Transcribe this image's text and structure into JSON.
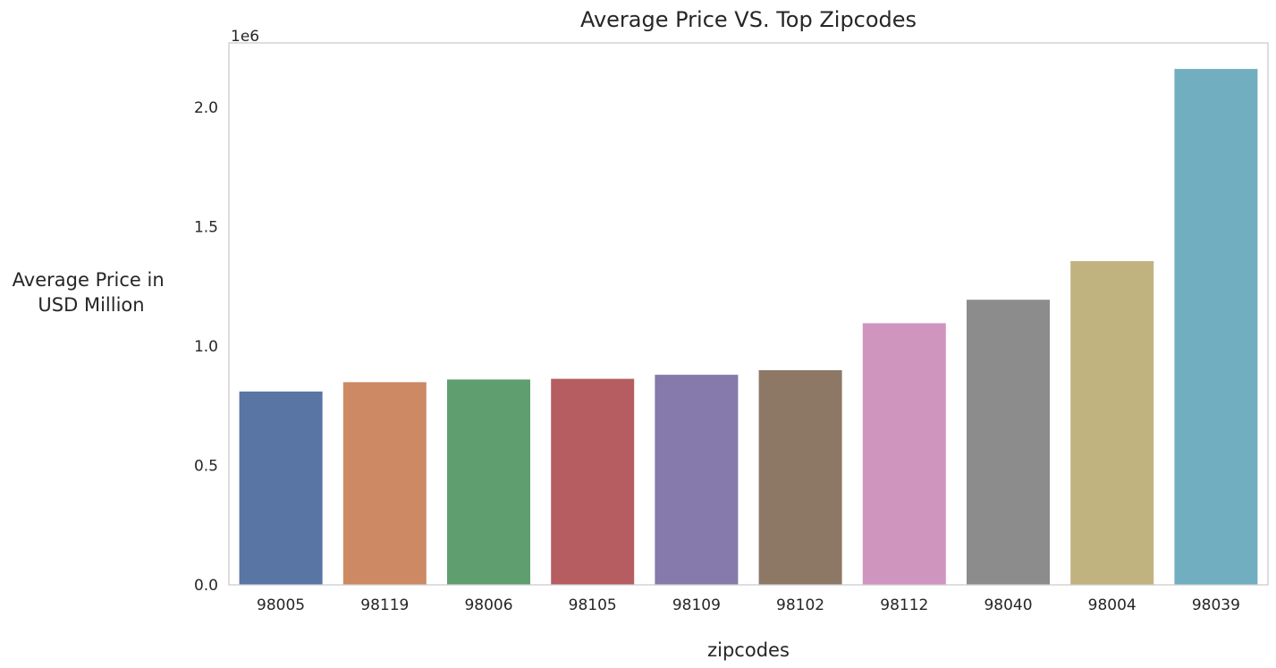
{
  "chart_data": {
    "type": "bar",
    "title": "Average Price VS. Top Zipcodes",
    "xlabel": "zipcodes",
    "ylabel_lines": [
      "Average Price in",
      "USD Million"
    ],
    "offset_label": "1e6",
    "categories": [
      "98005",
      "98119",
      "98006",
      "98105",
      "98109",
      "98102",
      "98112",
      "98040",
      "98004",
      "98039"
    ],
    "values": [
      810000,
      849000,
      860000,
      863000,
      880000,
      899000,
      1096000,
      1194000,
      1356000,
      2161000
    ],
    "colors": [
      "#5875a4",
      "#cc8963",
      "#5f9e6e",
      "#b55d60",
      "#857aab",
      "#8d7866",
      "#d095bf",
      "#8c8c8c",
      "#c1b37f",
      "#71aec0"
    ],
    "yticks": [
      0,
      500000,
      1000000,
      1500000,
      2000000
    ],
    "ytick_labels": [
      "0.0",
      "0.5",
      "1.0",
      "1.5",
      "2.0"
    ],
    "ylim": [
      0,
      2270000
    ],
    "grid": false,
    "legend": "none"
  }
}
